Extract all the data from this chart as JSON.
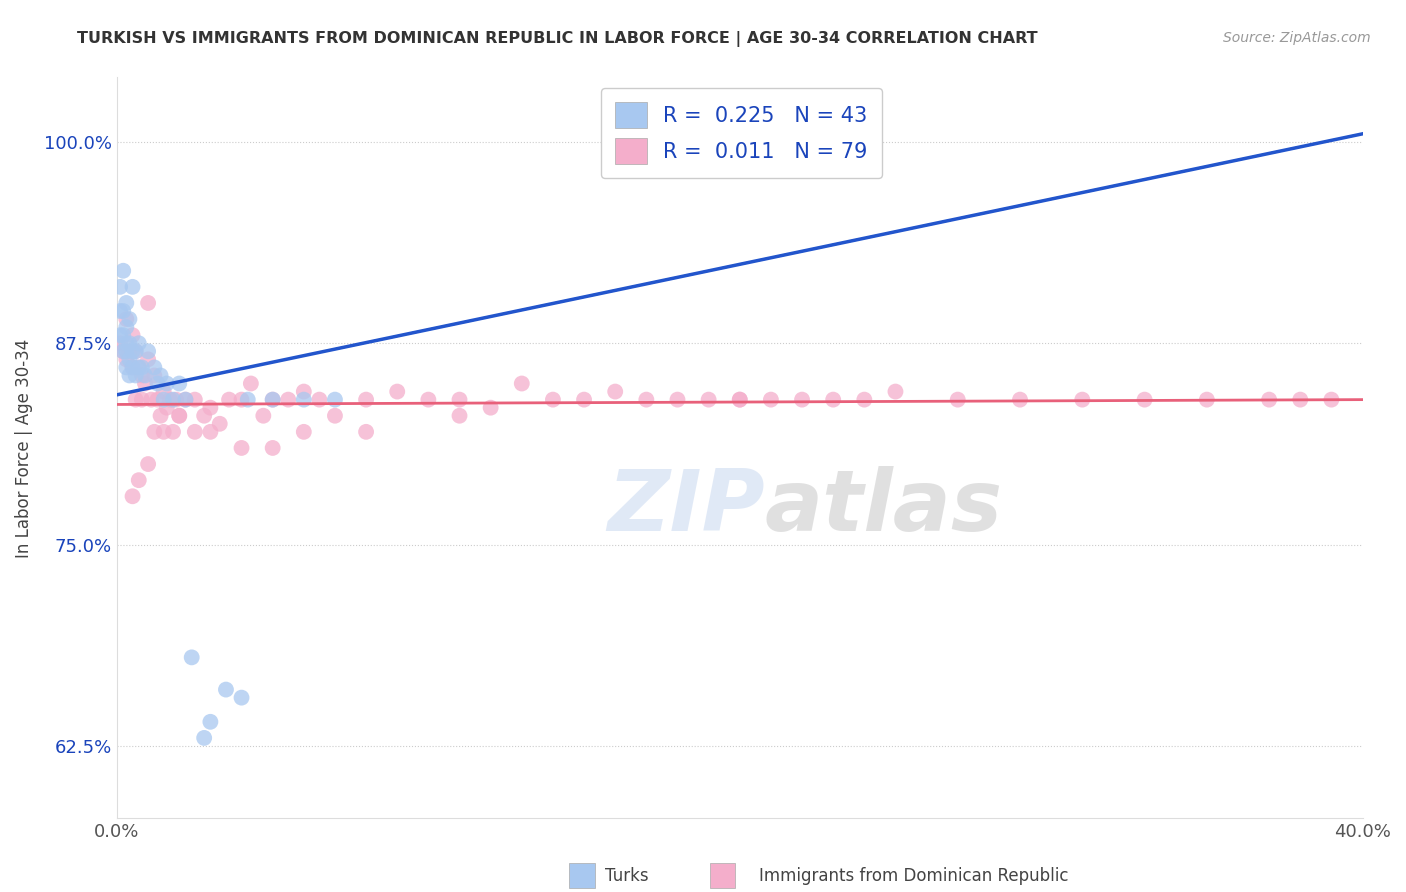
{
  "title": "TURKISH VS IMMIGRANTS FROM DOMINICAN REPUBLIC IN LABOR FORCE | AGE 30-34 CORRELATION CHART",
  "source": "Source: ZipAtlas.com",
  "ylabel": "In Labor Force | Age 30-34",
  "xlim": [
    0.0,
    0.4
  ],
  "ylim": [
    0.58,
    1.04
  ],
  "xtick_vals": [
    0.0,
    0.1,
    0.2,
    0.3,
    0.4
  ],
  "xticklabels": [
    "0.0%",
    "",
    "",
    "",
    "40.0%"
  ],
  "ytick_vals": [
    0.625,
    0.75,
    0.875,
    1.0
  ],
  "yticklabels": [
    "62.5%",
    "75.0%",
    "87.5%",
    "100.0%"
  ],
  "turks_R": 0.225,
  "turks_N": 43,
  "dr_R": 0.011,
  "dr_N": 79,
  "turks_color": "#A8C8F0",
  "dr_color": "#F4AECB",
  "trend_turks_color": "#2255CC",
  "trend_dr_color": "#E8607A",
  "background_color": "#ffffff",
  "grid_color": "#CCCCCC",
  "title_color": "#333333",
  "legend_color": "#1a44bb",
  "watermark_zip": "ZIP",
  "watermark_atlas": "atlas",
  "turks_x": [
    0.001,
    0.001,
    0.001,
    0.002,
    0.002,
    0.002,
    0.002,
    0.003,
    0.003,
    0.003,
    0.003,
    0.003,
    0.004,
    0.004,
    0.004,
    0.004,
    0.005,
    0.005,
    0.005,
    0.006,
    0.006,
    0.007,
    0.007,
    0.008,
    0.009,
    0.01,
    0.012,
    0.013,
    0.014,
    0.015,
    0.016,
    0.018,
    0.02,
    0.022,
    0.024,
    0.028,
    0.03,
    0.035,
    0.04,
    0.042,
    0.05,
    0.06,
    0.07
  ],
  "turks_y": [
    0.88,
    0.895,
    0.91,
    0.87,
    0.88,
    0.895,
    0.92,
    0.86,
    0.87,
    0.875,
    0.885,
    0.9,
    0.855,
    0.865,
    0.875,
    0.89,
    0.86,
    0.87,
    0.91,
    0.855,
    0.87,
    0.86,
    0.875,
    0.86,
    0.855,
    0.87,
    0.86,
    0.85,
    0.855,
    0.84,
    0.85,
    0.84,
    0.85,
    0.84,
    0.68,
    0.63,
    0.64,
    0.66,
    0.655,
    0.84,
    0.84,
    0.84,
    0.84
  ],
  "dr_x": [
    0.001,
    0.002,
    0.003,
    0.003,
    0.004,
    0.005,
    0.005,
    0.006,
    0.006,
    0.007,
    0.008,
    0.008,
    0.009,
    0.01,
    0.01,
    0.011,
    0.012,
    0.013,
    0.014,
    0.015,
    0.016,
    0.017,
    0.018,
    0.019,
    0.02,
    0.022,
    0.025,
    0.028,
    0.03,
    0.033,
    0.036,
    0.04,
    0.043,
    0.047,
    0.05,
    0.055,
    0.06,
    0.065,
    0.07,
    0.08,
    0.09,
    0.1,
    0.11,
    0.12,
    0.13,
    0.14,
    0.15,
    0.16,
    0.17,
    0.18,
    0.19,
    0.2,
    0.21,
    0.22,
    0.23,
    0.24,
    0.25,
    0.27,
    0.29,
    0.31,
    0.33,
    0.35,
    0.37,
    0.39,
    0.005,
    0.007,
    0.01,
    0.012,
    0.015,
    0.02,
    0.025,
    0.03,
    0.04,
    0.05,
    0.06,
    0.08,
    0.11,
    0.2,
    0.38
  ],
  "dr_y": [
    0.875,
    0.87,
    0.865,
    0.89,
    0.87,
    0.86,
    0.88,
    0.87,
    0.84,
    0.86,
    0.855,
    0.84,
    0.85,
    0.865,
    0.9,
    0.84,
    0.855,
    0.84,
    0.83,
    0.845,
    0.835,
    0.84,
    0.82,
    0.84,
    0.83,
    0.84,
    0.84,
    0.83,
    0.835,
    0.825,
    0.84,
    0.84,
    0.85,
    0.83,
    0.84,
    0.84,
    0.845,
    0.84,
    0.83,
    0.84,
    0.845,
    0.84,
    0.84,
    0.835,
    0.85,
    0.84,
    0.84,
    0.845,
    0.84,
    0.84,
    0.84,
    0.84,
    0.84,
    0.84,
    0.84,
    0.84,
    0.845,
    0.84,
    0.84,
    0.84,
    0.84,
    0.84,
    0.84,
    0.84,
    0.78,
    0.79,
    0.8,
    0.82,
    0.82,
    0.83,
    0.82,
    0.82,
    0.81,
    0.81,
    0.82,
    0.82,
    0.83,
    0.84,
    0.84
  ],
  "trend_turks_x0": 0.0,
  "trend_turks_y0": 0.843,
  "trend_turks_x1": 0.4,
  "trend_turks_y1": 1.005,
  "trend_dr_x0": 0.0,
  "trend_dr_y0": 0.837,
  "trend_dr_x1": 0.4,
  "trend_dr_y1": 0.84
}
